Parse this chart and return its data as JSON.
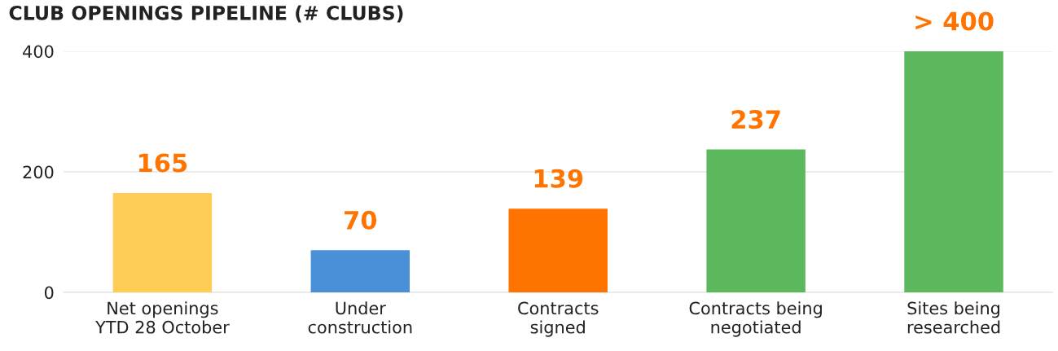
{
  "chart_data": {
    "type": "bar",
    "title": "CLUB OPENINGS PIPELINE (# CLUBS)",
    "categories": [
      "Net openings\nYTD 28 October",
      "Under\nconstruction",
      "Contracts\nsigned",
      "Contracts being\nnegotiated",
      "Sites being\nresearched"
    ],
    "values": [
      165,
      70,
      139,
      237,
      400
    ],
    "colors": [
      "#ffcc55",
      "#4a90d9",
      "#ff7300",
      "#5cb85c",
      "#5cb85c"
    ],
    "value_labels": [
      "165",
      "70",
      "139",
      "237",
      "> 400"
    ],
    "ylim": [
      0,
      400
    ],
    "yticks": [
      0,
      200,
      400
    ],
    "grid": "y"
  }
}
